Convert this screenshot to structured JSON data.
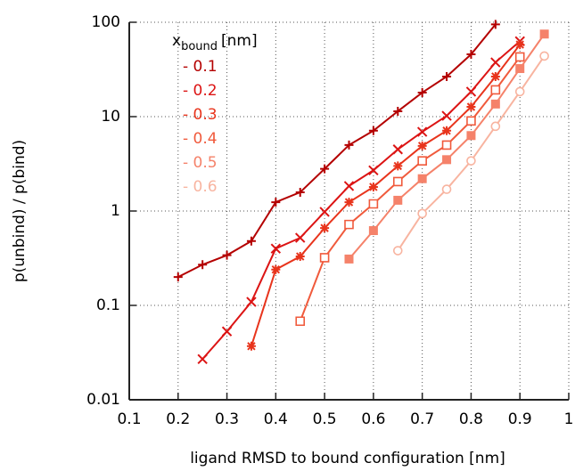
{
  "chart_data": {
    "type": "line",
    "xlabel": "ligand RMSD to bound configuration [nm]",
    "ylabel": "p(unbind) / p(bind)",
    "legend_title": "x",
    "legend_title_sub": "bound",
    "legend_title_unit": "[nm]",
    "xlim": [
      0.1,
      1
    ],
    "xticks": [
      0.1,
      0.2,
      0.3,
      0.4,
      0.5,
      0.6,
      0.7,
      0.8,
      0.9,
      1
    ],
    "ylim": [
      0.01,
      100
    ],
    "yticks": [
      0.01,
      0.1,
      1,
      10,
      100
    ],
    "ylog": true,
    "grid": true,
    "series": [
      {
        "name": "- 0.1",
        "color": "#b40000",
        "marker": "plus",
        "x": [
          0.2,
          0.25,
          0.3,
          0.35,
          0.4,
          0.45,
          0.5,
          0.55,
          0.6,
          0.65,
          0.7,
          0.75,
          0.8,
          0.85
        ],
        "values": [
          0.2,
          0.27,
          0.34,
          0.48,
          1.24,
          1.58,
          2.8,
          5.0,
          7.1,
          11.4,
          18,
          26.6,
          45.7,
          95
        ]
      },
      {
        "name": "- 0.2",
        "color": "#dc1414",
        "marker": "cross",
        "x": [
          0.25,
          0.3,
          0.35,
          0.4,
          0.45,
          0.5,
          0.55,
          0.6,
          0.65,
          0.7,
          0.75,
          0.8,
          0.85,
          0.9
        ],
        "values": [
          0.027,
          0.053,
          0.109,
          0.4,
          0.52,
          0.98,
          1.84,
          2.7,
          4.5,
          6.9,
          10.2,
          18.4,
          37.6,
          63
        ]
      },
      {
        "name": "- 0.3",
        "color": "#e8341c",
        "marker": "asterisk",
        "x": [
          0.35,
          0.4,
          0.45,
          0.5,
          0.55,
          0.6,
          0.65,
          0.7,
          0.75,
          0.8,
          0.85,
          0.9
        ],
        "values": [
          0.037,
          0.24,
          0.33,
          0.66,
          1.24,
          1.8,
          3.0,
          4.9,
          7.1,
          12.7,
          26.6,
          58
        ]
      },
      {
        "name": "- 0.4",
        "color": "#f05a3c",
        "marker": "square-open",
        "x": [
          0.45,
          0.5,
          0.55,
          0.6,
          0.65,
          0.7,
          0.75,
          0.8,
          0.85,
          0.9
        ],
        "values": [
          0.068,
          0.32,
          0.72,
          1.19,
          2.05,
          3.4,
          5.0,
          9.0,
          19.2,
          42.9
        ]
      },
      {
        "name": "- 0.5",
        "color": "#f5826a",
        "marker": "square",
        "x": [
          0.55,
          0.6,
          0.65,
          0.7,
          0.75,
          0.8,
          0.85,
          0.9,
          0.95
        ],
        "values": [
          0.31,
          0.62,
          1.3,
          2.2,
          3.5,
          6.3,
          13.6,
          32.3,
          75
        ]
      },
      {
        "name": "- 0.6",
        "color": "#f8b4a0",
        "marker": "circle-open",
        "x": [
          0.65,
          0.7,
          0.75,
          0.8,
          0.85,
          0.9,
          0.95
        ],
        "values": [
          0.38,
          0.94,
          1.7,
          3.4,
          7.9,
          18.4,
          43.9
        ]
      }
    ]
  }
}
